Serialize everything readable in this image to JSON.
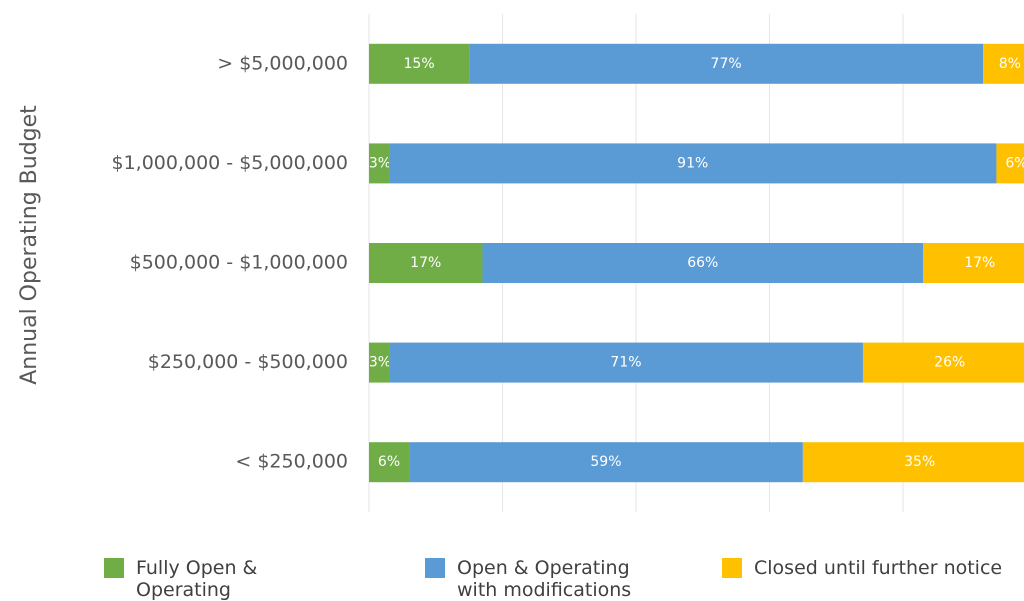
{
  "chart_data": {
    "type": "stacked-bar-horizontal",
    "y_axis_label": "Annual Operating Budget",
    "categories": [
      "> $5,000,000",
      "$1,000,000 - $5,000,000",
      "$500,000 - $1,000,000",
      "$250,000 - $500,000",
      "< $250,000"
    ],
    "series": [
      {
        "name": "Fully Open & Operating",
        "color": "#70ad47",
        "values": [
          15,
          3,
          17,
          3,
          6
        ],
        "value_labels": [
          "15%",
          "3%",
          "17%",
          "3%",
          "6%"
        ]
      },
      {
        "name": "Open & Operating with modifications",
        "color": "#5b9bd5",
        "values": [
          77,
          91,
          66,
          71,
          59
        ],
        "value_labels": [
          "77%",
          "91%",
          "66%",
          "71%",
          "59%"
        ]
      },
      {
        "name": "Closed until further notice",
        "color": "#ffc000",
        "values": [
          8,
          6,
          17,
          26,
          35
        ],
        "value_labels": [
          "8%",
          "6%",
          "17%",
          "26%",
          "35%"
        ]
      }
    ],
    "xlim": [
      0,
      100
    ],
    "xticks": [
      0,
      20,
      40,
      60,
      80,
      100
    ],
    "grid": true,
    "legend": "bottom"
  }
}
